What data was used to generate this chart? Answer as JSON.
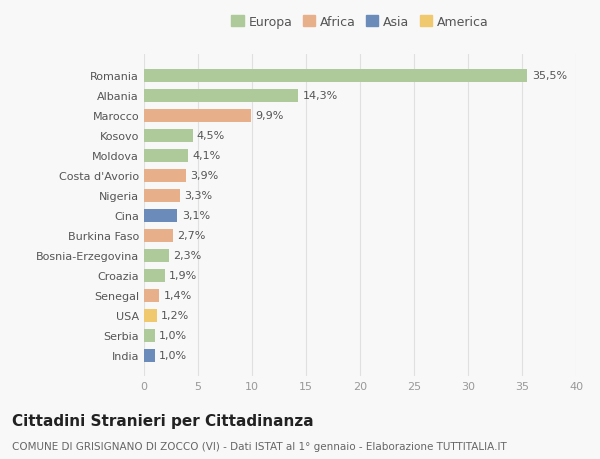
{
  "countries": [
    "Romania",
    "Albania",
    "Marocco",
    "Kosovo",
    "Moldova",
    "Costa d'Avorio",
    "Nigeria",
    "Cina",
    "Burkina Faso",
    "Bosnia-Erzegovina",
    "Croazia",
    "Senegal",
    "USA",
    "Serbia",
    "India"
  ],
  "values": [
    35.5,
    14.3,
    9.9,
    4.5,
    4.1,
    3.9,
    3.3,
    3.1,
    2.7,
    2.3,
    1.9,
    1.4,
    1.2,
    1.0,
    1.0
  ],
  "labels": [
    "35,5%",
    "14,3%",
    "9,9%",
    "4,5%",
    "4,1%",
    "3,9%",
    "3,3%",
    "3,1%",
    "2,7%",
    "2,3%",
    "1,9%",
    "1,4%",
    "1,2%",
    "1,0%",
    "1,0%"
  ],
  "continents": [
    "Europa",
    "Europa",
    "Africa",
    "Europa",
    "Europa",
    "Africa",
    "Africa",
    "Asia",
    "Africa",
    "Europa",
    "Europa",
    "Africa",
    "America",
    "Europa",
    "Asia"
  ],
  "continent_colors": {
    "Europa": "#aec99a",
    "Africa": "#e8b08a",
    "Asia": "#6b8cba",
    "America": "#f0c96e"
  },
  "legend_order": [
    "Europa",
    "Africa",
    "Asia",
    "America"
  ],
  "title": "Cittadini Stranieri per Cittadinanza",
  "subtitle": "COMUNE DI GRISIGNANO DI ZOCCO (VI) - Dati ISTAT al 1° gennaio - Elaborazione TUTTITALIA.IT",
  "xlim": [
    0,
    40
  ],
  "xticks": [
    0,
    5,
    10,
    15,
    20,
    25,
    30,
    35,
    40
  ],
  "background_color": "#f8f8f8",
  "grid_color": "#e0e0e0",
  "bar_height": 0.65,
  "label_fontsize": 8,
  "tick_fontsize": 8,
  "title_fontsize": 11,
  "subtitle_fontsize": 7.5,
  "legend_fontsize": 9
}
